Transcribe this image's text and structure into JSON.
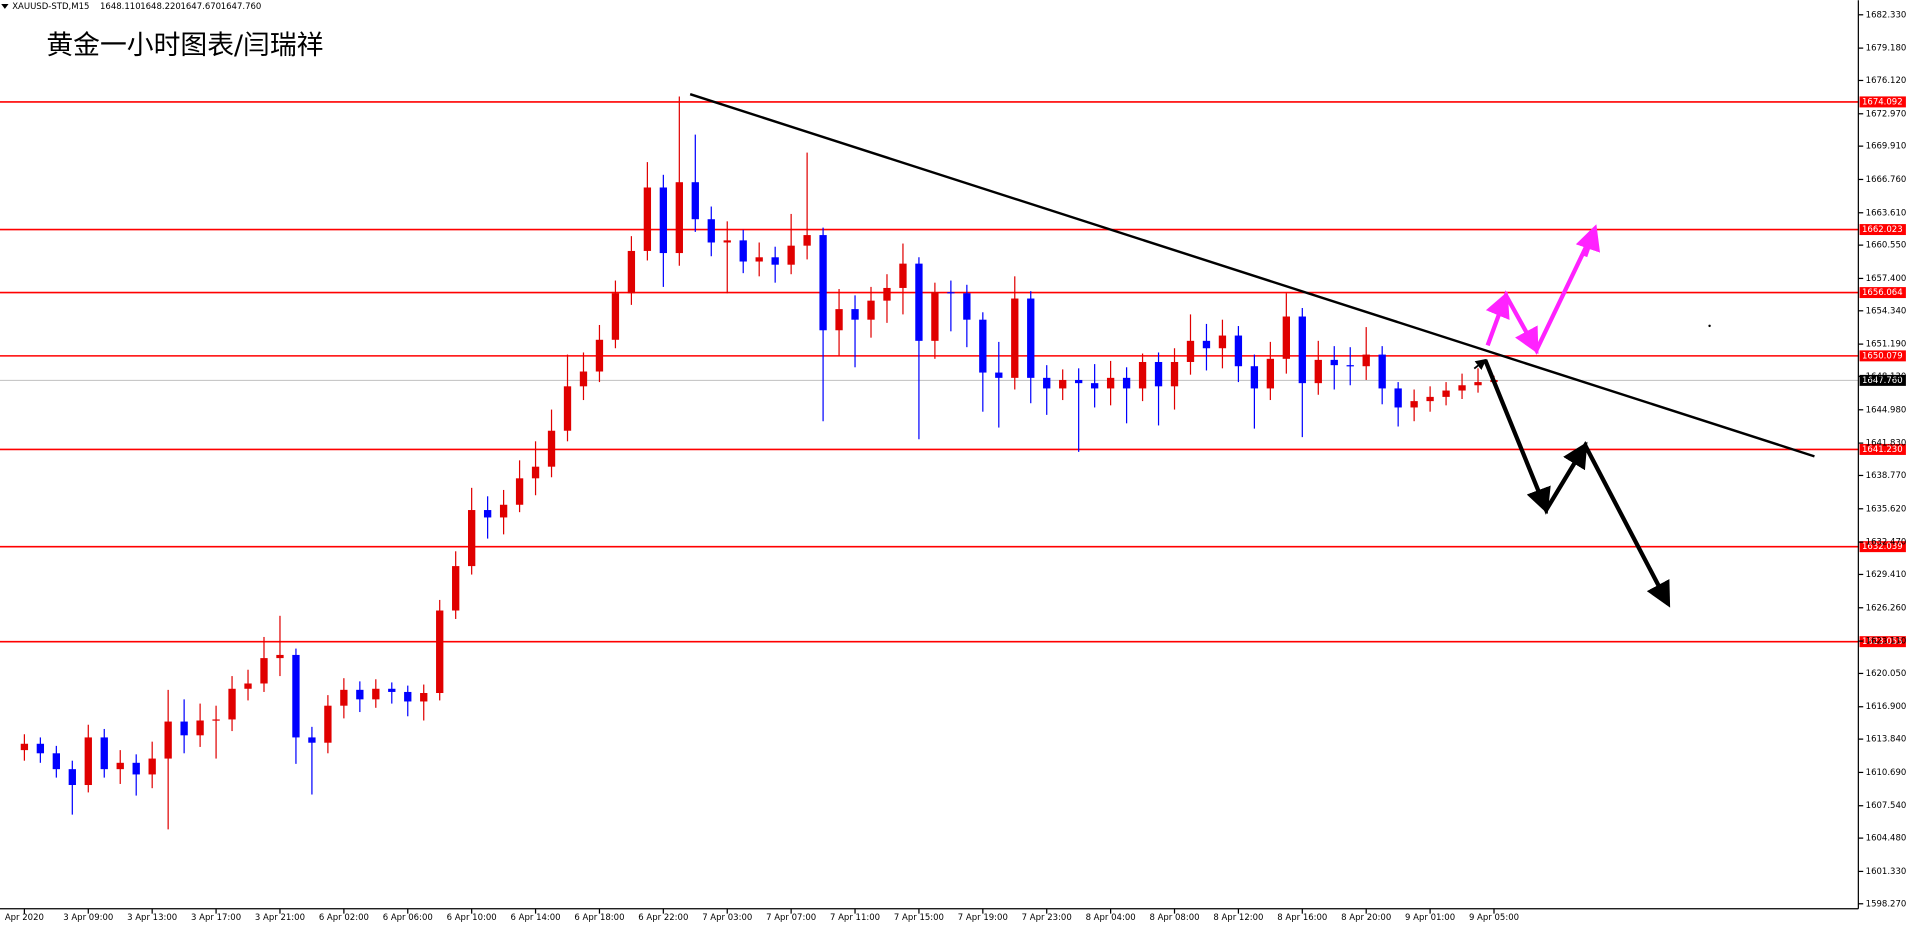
{
  "chart_data": {
    "type": "candlestick",
    "title": "黄金一小时图表/闫瑞祥",
    "header": {
      "symbol": "XAUUSD-STD,M15",
      "ohlc": [
        {
          "value": 1648.11,
          "label": "1648.110"
        },
        {
          "value": 1648.22,
          "label": "1648.220"
        },
        {
          "value": 1647.67,
          "label": "1647.670"
        },
        {
          "value": 1647.76,
          "label": "1647.760"
        }
      ]
    },
    "up_color": "#e00000",
    "down_color": "#0000ff",
    "level_color": "#ff0000",
    "categories": [
      "Apr 2020",
      null,
      null,
      null,
      "3 Apr 09:00",
      null,
      null,
      null,
      "3 Apr 13:00",
      null,
      null,
      null,
      "3 Apr 17:00",
      null,
      null,
      null,
      "3 Apr 21:00",
      null,
      null,
      null,
      "6 Apr 02:00",
      null,
      null,
      null,
      "6 Apr 06:00",
      null,
      null,
      null,
      "6 Apr 10:00",
      null,
      null,
      null,
      "6 Apr 14:00",
      null,
      null,
      null,
      "6 Apr 18:00",
      null,
      null,
      null,
      "6 Apr 22:00",
      null,
      null,
      null,
      "7 Apr 03:00",
      null,
      null,
      null,
      "7 Apr 07:00",
      null,
      null,
      null,
      "7 Apr 11:00",
      null,
      null,
      null,
      "7 Apr 15:00",
      null,
      null,
      null,
      "7 Apr 19:00",
      null,
      null,
      null,
      "7 Apr 23:00",
      null,
      null,
      null,
      "8 Apr 04:00",
      null,
      null,
      null,
      "8 Apr 08:00",
      null,
      null,
      null,
      "8 Apr 12:00",
      null,
      null,
      null,
      "8 Apr 16:00",
      null,
      null,
      null,
      "8 Apr 20:00",
      null,
      null,
      null,
      "9 Apr 01:00",
      null,
      null,
      null,
      "9 Apr 05:00"
    ],
    "open": [
      1612.8,
      1613.4,
      1612.5,
      1611,
      1609.5,
      1614,
      1611,
      1611.6,
      1610.5,
      1612,
      1615.5,
      1614.2,
      1615.6,
      1615.7,
      1618.6,
      1619.1,
      1621.5,
      1621.8,
      1614,
      1613.5,
      1617,
      1618.5,
      1617.6,
      1618.6,
      1618.3,
      1617.4,
      1618.2,
      1626,
      1630.2,
      1635.5,
      1634.8,
      1636,
      1638.5,
      1639.6,
      1643,
      1647.2,
      1648.6,
      1651.6,
      1656,
      1660,
      1666,
      1659.8,
      1666.5,
      1663,
      1660.8,
      1661,
      1659,
      1659.4,
      1658.7,
      1660.5,
      1661.5,
      1652.5,
      1654.5,
      1653.5,
      1655.3,
      1656.5,
      1658.8,
      1651.5,
      1656.1,
      1656,
      1653.5,
      1648.5,
      1648,
      1655.5,
      1648,
      1647,
      1647.8,
      1647.5,
      1647,
      1648,
      1647,
      1649.5,
      1647.2,
      1649.5,
      1651.5,
      1650.8,
      1652,
      1649.1,
      1647,
      1649.8,
      1653.8,
      1647.5,
      1649.7,
      1649.2,
      1649.1,
      1650.2,
      1647,
      1645.2,
      1645.8,
      1646.2,
      1646.8,
      1647.3,
      1647.6
    ],
    "high": [
      1614.3,
      1614,
      1613.2,
      1611.8,
      1615.2,
      1614.8,
      1612.8,
      1612.4,
      1613.6,
      1618.5,
      1617.6,
      1617.2,
      1617,
      1619.8,
      1620.4,
      1623.5,
      1625.5,
      1622.4,
      1615,
      1618,
      1619.6,
      1619.3,
      1619.5,
      1619.2,
      1618.9,
      1619,
      1627,
      1631.6,
      1637.6,
      1636.8,
      1637.4,
      1640.2,
      1642,
      1645,
      1650.2,
      1650.4,
      1653,
      1657.2,
      1661.4,
      1668.4,
      1667.2,
      1674.6,
      1671,
      1664.2,
      1662.8,
      1662,
      1660.8,
      1660.4,
      1663.5,
      1669.3,
      1662.2,
      1656.4,
      1655.8,
      1656.6,
      1657.8,
      1660.7,
      1659.4,
      1657,
      1657.2,
      1656.8,
      1654.2,
      1651.4,
      1657.6,
      1656.2,
      1649.2,
      1648.8,
      1648.9,
      1649.3,
      1649.6,
      1649,
      1650.3,
      1650.4,
      1650.8,
      1654,
      1653.1,
      1653.5,
      1652.9,
      1650.2,
      1651.4,
      1656,
      1654.6,
      1651.5,
      1651,
      1650.9,
      1652.8,
      1651,
      1647.6,
      1646.9,
      1647.2,
      1647.6,
      1648.4,
      1648.9,
      1648.2
    ],
    "low": [
      1611.8,
      1611.6,
      1610.2,
      1606.7,
      1608.8,
      1610.2,
      1609.6,
      1608.5,
      1609.2,
      1605.3,
      1612.5,
      1613.1,
      1612,
      1614.6,
      1617.5,
      1618.3,
      1619.8,
      1611.5,
      1608.6,
      1612.5,
      1615.8,
      1616.4,
      1616.8,
      1617.2,
      1616,
      1615.6,
      1617.5,
      1625.2,
      1629.4,
      1632.8,
      1633.2,
      1635.3,
      1636.9,
      1638.6,
      1642,
      1645.9,
      1647.6,
      1650.8,
      1654.9,
      1659.1,
      1656.6,
      1658.6,
      1661.8,
      1659.5,
      1656,
      1657.9,
      1657.6,
      1657,
      1657.8,
      1659.2,
      1643.9,
      1650.1,
      1649,
      1651.8,
      1653.2,
      1654,
      1642.2,
      1649.8,
      1652.4,
      1650.9,
      1644.8,
      1643.3,
      1646.9,
      1645.6,
      1644.5,
      1645.9,
      1641,
      1645.2,
      1645.4,
      1643.7,
      1645.8,
      1643.5,
      1645,
      1648.3,
      1648.7,
      1648.9,
      1647.6,
      1643.2,
      1645.9,
      1648.4,
      1642.4,
      1646.4,
      1646.9,
      1647.3,
      1647.8,
      1645.5,
      1643.4,
      1643.9,
      1644.8,
      1645.4,
      1646,
      1646.6,
      1647.3
    ],
    "close": [
      1613.4,
      1612.5,
      1611,
      1609.5,
      1614,
      1611,
      1611.6,
      1610.5,
      1612,
      1615.5,
      1614.2,
      1615.6,
      1615.7,
      1618.6,
      1619.1,
      1621.5,
      1621.8,
      1614,
      1613.5,
      1617,
      1618.5,
      1617.6,
      1618.6,
      1618.3,
      1617.4,
      1618.2,
      1626,
      1630.2,
      1635.5,
      1634.8,
      1636,
      1638.5,
      1639.6,
      1643,
      1647.2,
      1648.6,
      1651.6,
      1656,
      1660,
      1666,
      1659.8,
      1666.5,
      1663,
      1660.8,
      1661,
      1659,
      1659.4,
      1658.7,
      1660.5,
      1661.5,
      1652.5,
      1654.5,
      1653.5,
      1655.3,
      1656.5,
      1658.8,
      1651.5,
      1656.1,
      1656,
      1653.5,
      1648.5,
      1648,
      1655.5,
      1648,
      1647,
      1647.8,
      1647.5,
      1647,
      1648,
      1647,
      1649.5,
      1647.2,
      1649.5,
      1651.5,
      1650.8,
      1652,
      1649.1,
      1647,
      1649.8,
      1653.8,
      1647.5,
      1649.7,
      1649.2,
      1649.1,
      1650.2,
      1647,
      1645.2,
      1645.8,
      1646.2,
      1646.8,
      1647.3,
      1647.6,
      1647.8
    ],
    "ylim": [
      1597.8,
      1683.7
    ],
    "yticks": [
      {
        "value": 1598.27,
        "label": "1598.270"
      },
      {
        "value": 1601.33,
        "label": "1601.330"
      },
      {
        "value": 1604.48,
        "label": "1604.480"
      },
      {
        "value": 1607.54,
        "label": "1607.540"
      },
      {
        "value": 1610.69,
        "label": "1610.690"
      },
      {
        "value": 1613.84,
        "label": "1613.840"
      },
      {
        "value": 1616.9,
        "label": "1616.900"
      },
      {
        "value": 1620.05,
        "label": "1620.050"
      },
      {
        "value": 1623.11,
        "label": "1623.110"
      },
      {
        "value": 1626.26,
        "label": "1626.260"
      },
      {
        "value": 1629.41,
        "label": "1629.410"
      },
      {
        "value": 1632.47,
        "label": "1632.470"
      },
      {
        "value": 1635.62,
        "label": "1635.620"
      },
      {
        "value": 1638.77,
        "label": "1638.770"
      },
      {
        "value": 1641.83,
        "label": "1641.830"
      },
      {
        "value": 1644.98,
        "label": "1644.980"
      },
      {
        "value": 1648.13,
        "label": "1648.130"
      },
      {
        "value": 1651.19,
        "label": "1651.190"
      },
      {
        "value": 1654.34,
        "label": "1654.340"
      },
      {
        "value": 1657.4,
        "label": "1657.400"
      },
      {
        "value": 1660.55,
        "label": "1660.550"
      },
      {
        "value": 1663.61,
        "label": "1663.610"
      },
      {
        "value": 1666.76,
        "label": "1666.760"
      },
      {
        "value": 1669.91,
        "label": "1669.910"
      },
      {
        "value": 1672.97,
        "label": "1672.970"
      },
      {
        "value": 1676.12,
        "label": "1676.120"
      },
      {
        "value": 1679.18,
        "label": "1679.180"
      },
      {
        "value": 1682.33,
        "label": "1682.330"
      }
    ],
    "levels": [
      1674.092,
      1662.023,
      1656.064,
      1650.079,
      {
        "value": 1641.23,
        "label": "1641.230"
      },
      1632.039,
      1623.055
    ],
    "last_price": {
      "value": 1647.76,
      "label": "1647.760"
    }
  }
}
